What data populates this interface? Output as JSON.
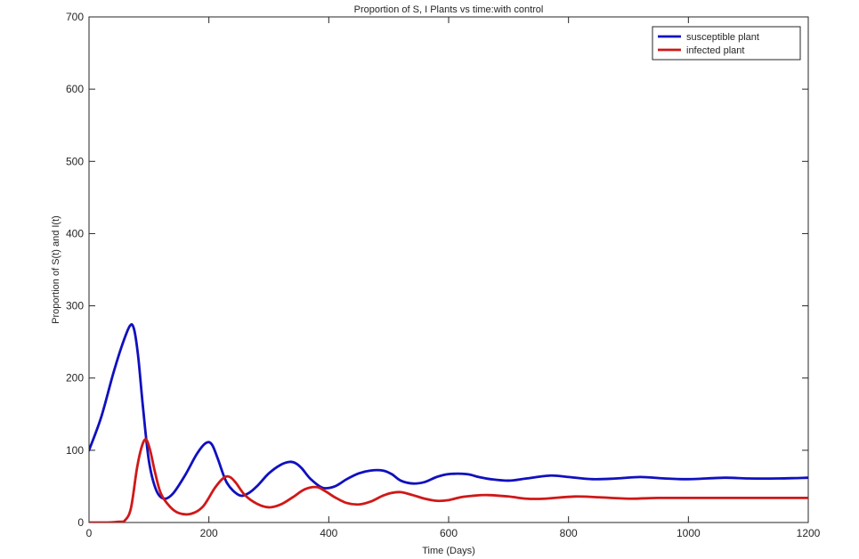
{
  "chart_data": {
    "type": "line",
    "title": "Proportion of S, I Plants vs time:with control",
    "xlabel": "Time (Days)",
    "ylabel": "Proportion of S(t) and I(t)",
    "xlim": [
      0,
      1200
    ],
    "ylim": [
      0,
      700
    ],
    "xticks": [
      0,
      200,
      400,
      600,
      800,
      1000,
      1200
    ],
    "yticks": [
      0,
      100,
      200,
      300,
      400,
      500,
      600,
      700
    ],
    "grid": false,
    "legend_position": "top-right",
    "series": [
      {
        "name": "susceptible plant",
        "color": "#1010c0",
        "x": [
          0,
          20,
          40,
          55,
          68,
          75,
          82,
          90,
          100,
          112,
          125,
          140,
          160,
          180,
          195,
          205,
          215,
          230,
          250,
          265,
          280,
          300,
          320,
          335,
          345,
          355,
          370,
          390,
          410,
          430,
          450,
          470,
          490,
          505,
          520,
          540,
          560,
          580,
          600,
          630,
          650,
          670,
          700,
          730,
          770,
          800,
          840,
          880,
          920,
          960,
          1000,
          1060,
          1100,
          1150,
          1200
        ],
        "y": [
          100,
          145,
          205,
          245,
          272,
          268,
          230,
          160,
          85,
          45,
          33,
          40,
          65,
          95,
          110,
          108,
          88,
          55,
          38,
          40,
          50,
          68,
          80,
          84,
          82,
          75,
          60,
          48,
          50,
          60,
          68,
          72,
          72,
          67,
          58,
          54,
          56,
          63,
          67,
          67,
          63,
          60,
          58,
          61,
          65,
          63,
          60,
          61,
          63,
          61,
          60,
          62,
          61,
          61,
          62
        ]
      },
      {
        "name": "infected plant",
        "color": "#d01818",
        "x": [
          0,
          30,
          50,
          60,
          70,
          80,
          88,
          95,
          102,
          110,
          120,
          135,
          150,
          170,
          190,
          210,
          225,
          235,
          245,
          260,
          280,
          300,
          320,
          340,
          360,
          380,
          395,
          410,
          430,
          450,
          470,
          490,
          505,
          520,
          540,
          560,
          580,
          600,
          620,
          640,
          665,
          700,
          730,
          760,
          810,
          850,
          900,
          950,
          1000,
          1050,
          1100,
          1150,
          1200
        ],
        "y": [
          0,
          0,
          1,
          3,
          20,
          75,
          105,
          115,
          100,
          70,
          40,
          22,
          13,
          12,
          22,
          48,
          62,
          63,
          55,
          38,
          26,
          21,
          25,
          35,
          46,
          49,
          43,
          35,
          27,
          25,
          29,
          37,
          41,
          42,
          38,
          33,
          30,
          31,
          35,
          37,
          38,
          36,
          33,
          33,
          36,
          35,
          33,
          34,
          34,
          34,
          34,
          34,
          34
        ]
      }
    ]
  }
}
